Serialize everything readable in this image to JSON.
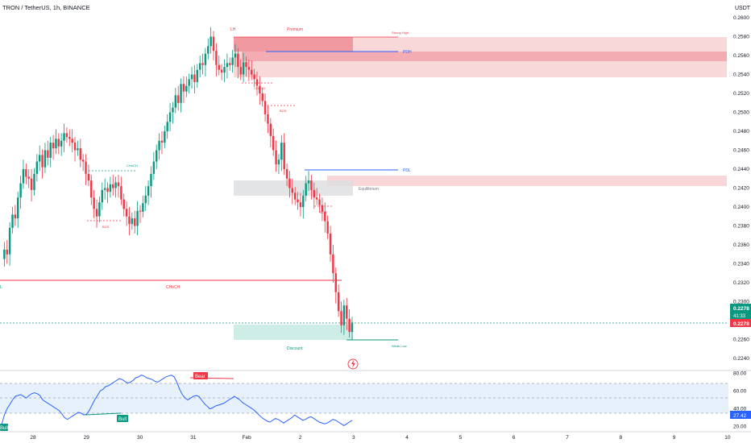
{
  "header": {
    "symbol_line": "TRON / TetherUS, 1h, BINANCE"
  },
  "currency": "USDT",
  "chart_data": {
    "type": "candlestick",
    "symbol": "TRON / TetherUS",
    "interval": "1h",
    "exchange": "BINANCE",
    "price_axis": {
      "min": 0.224,
      "max": 0.26,
      "ticks": [
        "0.2600",
        "0.2580",
        "0.2560",
        "0.2540",
        "0.2520",
        "0.2500",
        "0.2480",
        "0.2460",
        "0.2440",
        "0.2420",
        "0.2400",
        "0.2380",
        "0.2360",
        "0.2340",
        "0.2320",
        "0.2300",
        "0.2260",
        "0.2240"
      ]
    },
    "time_axis": {
      "ticks": [
        "28",
        "29",
        "30",
        "31",
        "Feb",
        "2",
        "3",
        "4",
        "5",
        "6",
        "7",
        "8",
        "9",
        "10"
      ]
    },
    "price_path": [
      0.2345,
      0.2355,
      0.235,
      0.2378,
      0.2392,
      0.2388,
      0.241,
      0.2425,
      0.244,
      0.2432,
      0.243,
      0.2418,
      0.2435,
      0.2448,
      0.2455,
      0.2442,
      0.246,
      0.2452,
      0.2468,
      0.2462,
      0.2472,
      0.2464,
      0.247,
      0.2478,
      0.2474,
      0.2472,
      0.2468,
      0.246,
      0.2462,
      0.245,
      0.2448,
      0.2435,
      0.2428,
      0.241,
      0.2398,
      0.239,
      0.2405,
      0.2418,
      0.242,
      0.2416,
      0.2424,
      0.242,
      0.2426,
      0.2422,
      0.2408,
      0.2398,
      0.239,
      0.2382,
      0.2388,
      0.238,
      0.2396,
      0.2395,
      0.2404,
      0.2412,
      0.2422,
      0.2435,
      0.2448,
      0.246,
      0.247,
      0.2468,
      0.248,
      0.249,
      0.25,
      0.2505,
      0.2518,
      0.251,
      0.253,
      0.2522,
      0.2528,
      0.2535,
      0.254,
      0.2532,
      0.2545,
      0.2552,
      0.255,
      0.2562,
      0.257,
      0.258,
      0.2565,
      0.255,
      0.2545,
      0.2542,
      0.2548,
      0.2552,
      0.255,
      0.2558,
      0.2562,
      0.2548,
      0.254,
      0.2553,
      0.2548,
      0.2545,
      0.254,
      0.2535,
      0.2528,
      0.252,
      0.2512,
      0.2498,
      0.2488,
      0.2475,
      0.246,
      0.2445,
      0.245,
      0.2468,
      0.244,
      0.243,
      0.242,
      0.2415,
      0.2408,
      0.2405,
      0.24,
      0.2412,
      0.2425,
      0.2428,
      0.2418,
      0.241,
      0.2408,
      0.2402,
      0.2395,
      0.2385,
      0.2372,
      0.235,
      0.233,
      0.231,
      0.229,
      0.2275,
      0.2296,
      0.2282,
      0.2268,
      0.2278
    ],
    "last_price": "0.2278",
    "countdown": "41:33",
    "ask_price": "0.2278",
    "zones": [
      {
        "label": "Premium",
        "kind": "premium"
      },
      {
        "label": "Equilibrium",
        "kind": "equilibrium"
      },
      {
        "label": "Discount",
        "kind": "discount"
      }
    ],
    "levels": [
      {
        "label": "Strong High",
        "price": 0.258
      },
      {
        "label": "PDH",
        "price": 0.2566
      },
      {
        "label": "PDL",
        "price": 0.2438
      },
      {
        "label": "Weak Low",
        "price": 0.2262
      }
    ],
    "structure_labels": [
      "LH",
      "CHoCH",
      "CHoCH",
      "CHoCH",
      "BOS",
      "BOS",
      "BOS",
      "L"
    ],
    "rsi": {
      "axis_ticks": [
        "80.00",
        "60.00",
        "40.00",
        "20.00"
      ],
      "min": 15,
      "max": 85,
      "upper_band": 70,
      "lower_band": 30,
      "values": [
        22,
        33,
        40,
        45,
        50,
        54,
        55,
        56,
        54,
        52,
        55,
        57,
        58,
        57,
        55,
        50,
        48,
        46,
        44,
        42,
        40,
        38,
        34,
        30,
        28,
        30,
        32,
        34,
        36,
        35,
        33,
        34,
        38,
        44,
        50,
        55,
        60,
        62,
        65,
        66,
        68,
        70,
        72,
        74,
        73,
        71,
        69,
        70,
        72,
        75,
        76,
        78,
        77,
        75,
        74,
        73,
        71,
        70,
        72,
        74,
        76,
        77,
        78,
        76,
        70,
        62,
        56,
        52,
        50,
        52,
        54,
        55,
        54,
        50,
        46,
        43,
        40,
        41,
        43,
        44,
        45,
        46,
        48,
        50,
        52,
        54,
        52,
        50,
        47,
        45,
        43,
        41,
        39,
        36,
        33,
        30,
        28,
        26,
        25,
        27,
        29,
        28,
        26,
        24,
        26,
        28,
        30,
        33,
        31,
        29,
        27,
        28,
        30,
        31,
        29,
        27,
        25,
        24,
        23,
        24,
        26,
        28,
        27,
        25,
        23,
        21,
        23,
        25,
        27
      ],
      "last_value": "27.42",
      "bear_label": "Bear",
      "bull_label": "Bull",
      "extra_label": "Bull"
    }
  },
  "colors": {
    "up": "#089981",
    "down": "#f23645",
    "premium_fill": "#f7c8cb",
    "premium_strong": "#ef8a92",
    "equilibrium_fill": "#dedfe2",
    "discount_fill": "#c9ebe4",
    "pdh_line": "#2962ff",
    "rsi_line": "#2962ff",
    "rsi_band": "#e3f0fc",
    "label_green": "#089981",
    "label_red": "#f23645"
  },
  "icons": {
    "alert": "lightning-bolt-icon"
  }
}
